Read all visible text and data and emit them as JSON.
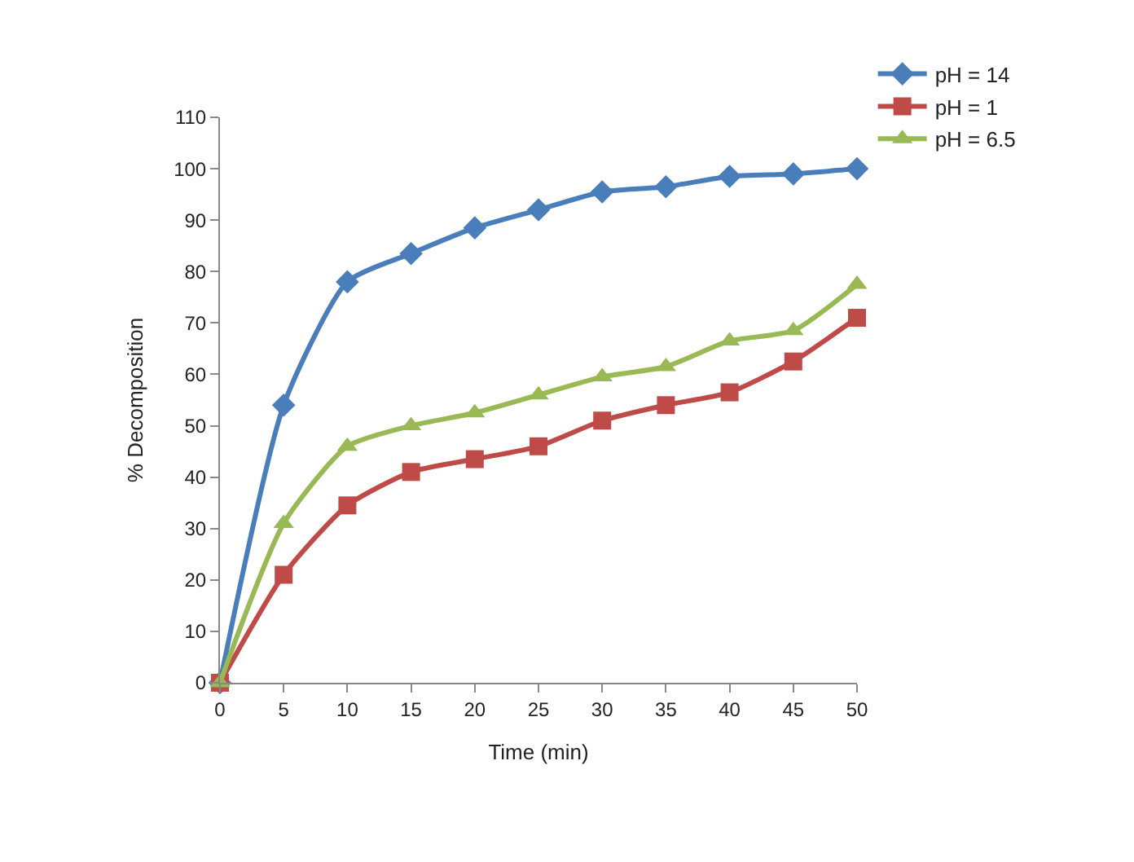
{
  "chart_data": {
    "type": "line",
    "xlabel": "Time (min)",
    "ylabel": "% Decomposition",
    "categories": [
      "0",
      "5",
      "10",
      "15",
      "20",
      "25",
      "30",
      "35",
      "40",
      "45",
      "50"
    ],
    "series": [
      {
        "name": "pH = 14",
        "color": "#4a7ebb",
        "marker": "diamond",
        "values": [
          0,
          54,
          78,
          83.5,
          88.5,
          92,
          95.5,
          96.5,
          98.5,
          99,
          100
        ]
      },
      {
        "name": "pH = 1",
        "color": "#be4b48",
        "marker": "square",
        "values": [
          0,
          21,
          34.5,
          41,
          43.5,
          46,
          51,
          54,
          56.5,
          62.5,
          71
        ]
      },
      {
        "name": "pH = 6.5",
        "color": "#98b954",
        "marker": "triangle",
        "values": [
          0,
          31,
          46,
          50,
          52.5,
          56,
          59.5,
          61.5,
          66.5,
          68.5,
          77.5
        ]
      }
    ],
    "ylim": [
      0,
      110
    ],
    "yticks": [
      0,
      10,
      20,
      30,
      40,
      50,
      60,
      70,
      80,
      90,
      100,
      110
    ],
    "legend": "top right",
    "line_style": "solid"
  }
}
